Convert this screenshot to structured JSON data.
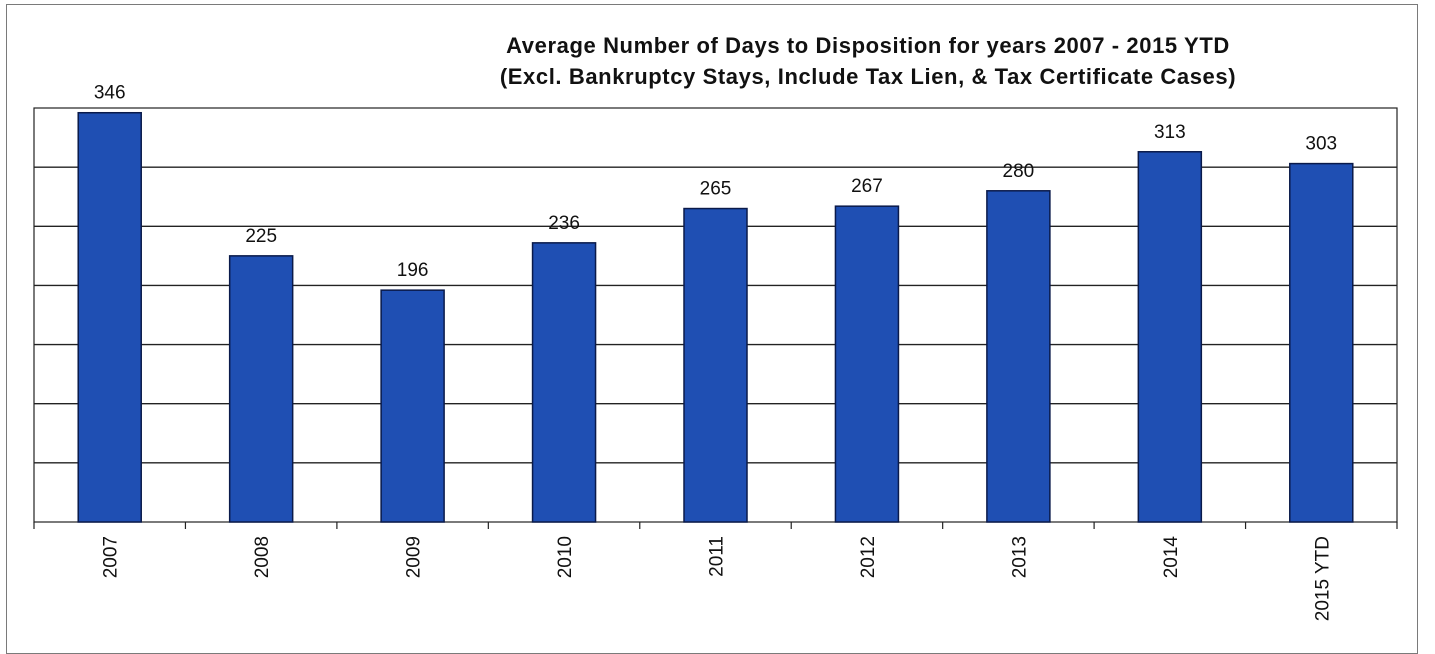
{
  "chart_data": {
    "type": "bar",
    "title": "Average Number of Days to Disposition  for years 2007 - 2015 YTD",
    "subtitle": "(Excl. Bankruptcy Stays, Include Tax Lien, & Tax Certificate Cases)",
    "categories": [
      "2007",
      "2008",
      "2009",
      "2010",
      "2011",
      "2012",
      "2013",
      "2014",
      "2015 YTD"
    ],
    "values": [
      346,
      225,
      196,
      236,
      265,
      267,
      280,
      313,
      303
    ],
    "data_labels": [
      "346",
      "225",
      "196",
      "236",
      "265",
      "267",
      "280",
      "313",
      "303"
    ],
    "xlabel": "",
    "ylabel": "",
    "ylim": [
      0,
      350
    ],
    "grid": true,
    "legend": "none",
    "bar_color": "#1f4fb3",
    "bar_edge_color": "#0a1a4a"
  }
}
